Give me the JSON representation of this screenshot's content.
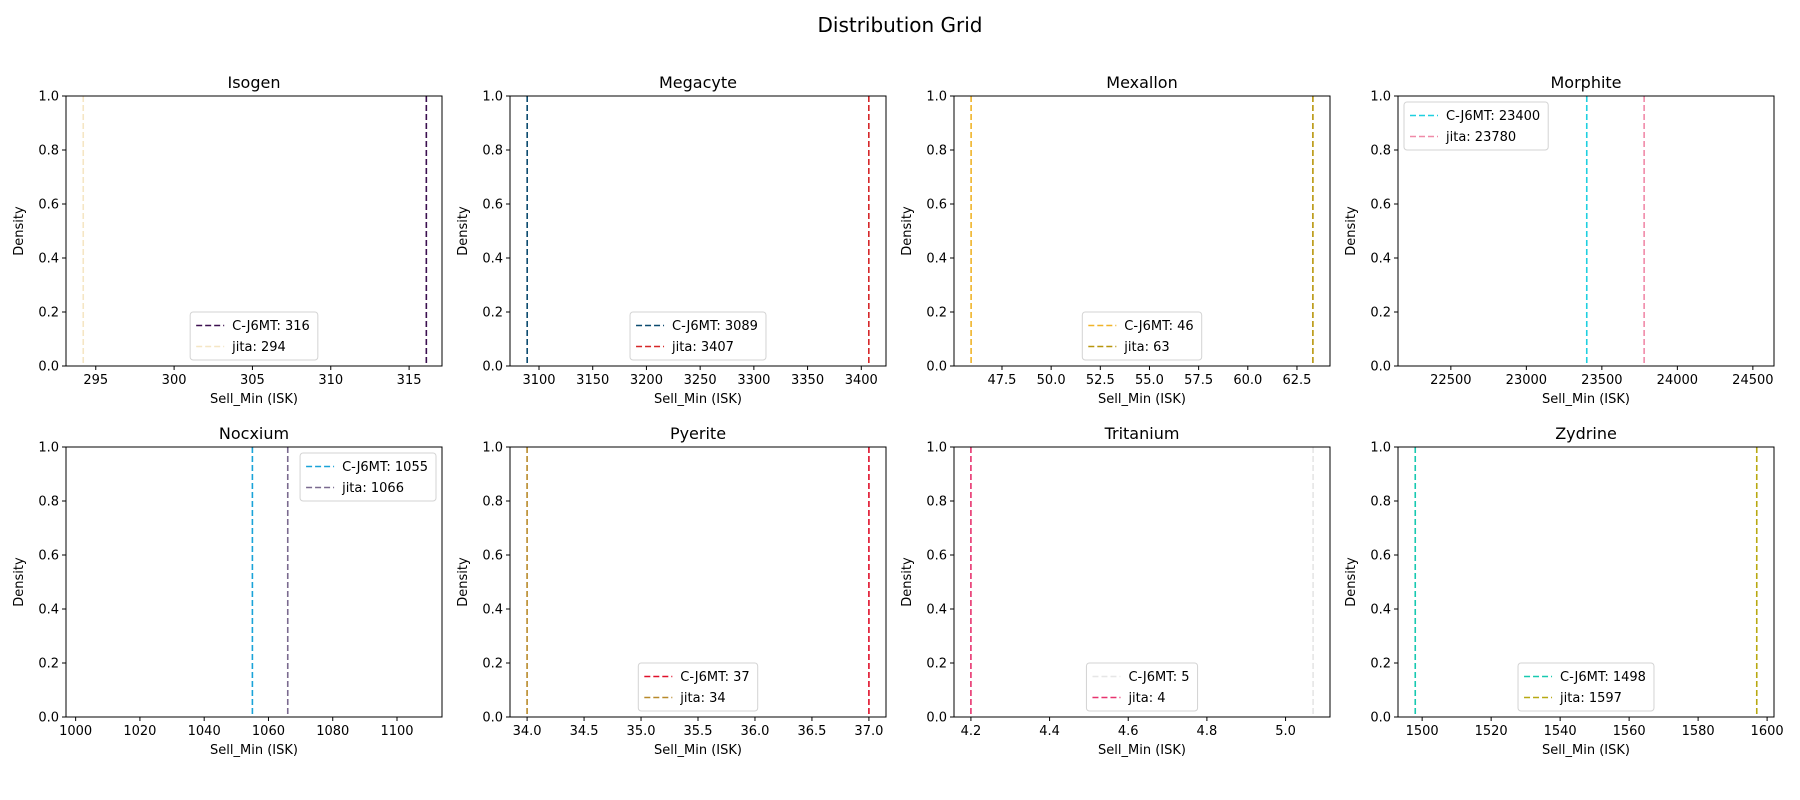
{
  "chart_data": {
    "title": "Distribution Grid",
    "panels": [
      {
        "type": "line",
        "title": "Isogen",
        "xlabel": "Sell_Min (ISK)",
        "ylabel": "Density",
        "xlim": [
          293.1,
          317.1
        ],
        "ylim": [
          0,
          1
        ],
        "xticks": [
          295,
          300,
          305,
          310,
          315
        ],
        "xtick_labels": [
          "295",
          "300",
          "305",
          "310",
          "315"
        ],
        "yticks": [
          0,
          0.2,
          0.4,
          0.6,
          0.8,
          1.0
        ],
        "ytick_labels": [
          "0.0",
          "0.2",
          "0.4",
          "0.6",
          "0.8",
          "1.0"
        ],
        "legend_position": "lower-center",
        "series": [
          {
            "name": "C-J6MT: 316",
            "x": 316.1,
            "color": "#3b0f4f"
          },
          {
            "name": "jita: 294",
            "x": 294.2,
            "color": "#f5e6c4"
          }
        ]
      },
      {
        "type": "line",
        "title": "Megacyte",
        "xlabel": "Sell_Min (ISK)",
        "ylabel": "Density",
        "xlim": [
          3073,
          3423
        ],
        "ylim": [
          0,
          1
        ],
        "xticks": [
          3100,
          3150,
          3200,
          3250,
          3300,
          3350,
          3400
        ],
        "xtick_labels": [
          "3100",
          "3150",
          "3200",
          "3250",
          "3300",
          "3350",
          "3400"
        ],
        "yticks": [
          0,
          0.2,
          0.4,
          0.6,
          0.8,
          1.0
        ],
        "ytick_labels": [
          "0.0",
          "0.2",
          "0.4",
          "0.6",
          "0.8",
          "1.0"
        ],
        "legend_position": "lower-center",
        "series": [
          {
            "name": "C-J6MT: 3089",
            "x": 3089,
            "color": "#0b4a6f"
          },
          {
            "name": "jita: 3407",
            "x": 3407,
            "color": "#d62728"
          }
        ]
      },
      {
        "type": "line",
        "title": "Mexallon",
        "xlabel": "Sell_Min (ISK)",
        "ylabel": "Density",
        "xlim": [
          45.06,
          64.18
        ],
        "ylim": [
          0,
          1
        ],
        "xticks": [
          47.5,
          50.0,
          52.5,
          55.0,
          57.5,
          60.0,
          62.5
        ],
        "xtick_labels": [
          "47.5",
          "50.0",
          "52.5",
          "55.0",
          "57.5",
          "60.0",
          "62.5"
        ],
        "yticks": [
          0,
          0.2,
          0.4,
          0.6,
          0.8,
          1.0
        ],
        "ytick_labels": [
          "0.0",
          "0.2",
          "0.4",
          "0.6",
          "0.8",
          "1.0"
        ],
        "legend_position": "lower-center",
        "series": [
          {
            "name": "C-J6MT: 46",
            "x": 45.93,
            "color": "#f0b429"
          },
          {
            "name": "jita: 63",
            "x": 63.31,
            "color": "#b8960c"
          }
        ]
      },
      {
        "type": "line",
        "title": "Morphite",
        "xlabel": "Sell_Min (ISK)",
        "ylabel": "Density",
        "xlim": [
          22150,
          24640
        ],
        "ylim": [
          0,
          1
        ],
        "xticks": [
          22500,
          23000,
          23500,
          24000,
          24500
        ],
        "xtick_labels": [
          "22500",
          "23000",
          "23500",
          "24000",
          "24500"
        ],
        "yticks": [
          0,
          0.2,
          0.4,
          0.6,
          0.8,
          1.0
        ],
        "ytick_labels": [
          "0.0",
          "0.2",
          "0.4",
          "0.6",
          "0.8",
          "1.0"
        ],
        "legend_position": "upper-left",
        "series": [
          {
            "name": "C-J6MT: 23400",
            "x": 23400,
            "color": "#1fd0e0"
          },
          {
            "name": "jita: 23780",
            "x": 23780,
            "color": "#f08aa8"
          }
        ]
      },
      {
        "type": "line",
        "title": "Nocxium",
        "xlabel": "Sell_Min (ISK)",
        "ylabel": "Density",
        "xlim": [
          997,
          1114
        ],
        "ylim": [
          0,
          1
        ],
        "xticks": [
          1000,
          1020,
          1040,
          1060,
          1080,
          1100
        ],
        "xtick_labels": [
          "1000",
          "1020",
          "1040",
          "1060",
          "1080",
          "1100"
        ],
        "yticks": [
          0,
          0.2,
          0.4,
          0.6,
          0.8,
          1.0
        ],
        "ytick_labels": [
          "0.0",
          "0.2",
          "0.4",
          "0.6",
          "0.8",
          "1.0"
        ],
        "legend_position": "upper-right",
        "series": [
          {
            "name": "C-J6MT: 1055",
            "x": 1055,
            "color": "#1aa3d8"
          },
          {
            "name": "jita: 1066",
            "x": 1066,
            "color": "#7a6a8f"
          }
        ]
      },
      {
        "type": "line",
        "title": "Pyerite",
        "xlabel": "Sell_Min (ISK)",
        "ylabel": "Density",
        "xlim": [
          33.85,
          37.15
        ],
        "ylim": [
          0,
          1
        ],
        "xticks": [
          34.0,
          34.5,
          35.0,
          35.5,
          36.0,
          36.5,
          37.0
        ],
        "xtick_labels": [
          "34.0",
          "34.5",
          "35.0",
          "35.5",
          "36.0",
          "36.5",
          "37.0"
        ],
        "yticks": [
          0,
          0.2,
          0.4,
          0.6,
          0.8,
          1.0
        ],
        "ytick_labels": [
          "0.0",
          "0.2",
          "0.4",
          "0.6",
          "0.8",
          "1.0"
        ],
        "legend_position": "lower-center",
        "series": [
          {
            "name": "C-J6MT: 37",
            "x": 37.0,
            "color": "#e0102a"
          },
          {
            "name": "jita: 34",
            "x": 34.0,
            "color": "#b88a2a"
          }
        ]
      },
      {
        "type": "line",
        "title": "Tritanium",
        "xlabel": "Sell_Min (ISK)",
        "ylabel": "Density",
        "xlim": [
          4.157,
          5.113
        ],
        "ylim": [
          0,
          1
        ],
        "xticks": [
          4.2,
          4.4,
          4.6,
          4.8,
          5.0
        ],
        "xtick_labels": [
          "4.2",
          "4.4",
          "4.6",
          "4.8",
          "5.0"
        ],
        "yticks": [
          0,
          0.2,
          0.4,
          0.6,
          0.8,
          1.0
        ],
        "ytick_labels": [
          "0.0",
          "0.2",
          "0.4",
          "0.6",
          "0.8",
          "1.0"
        ],
        "legend_position": "lower-center",
        "series": [
          {
            "name": "C-J6MT: 5",
            "x": 5.07,
            "color": "#e6e6e6"
          },
          {
            "name": "jita: 4",
            "x": 4.2,
            "color": "#e8336f"
          }
        ]
      },
      {
        "type": "line",
        "title": "Zydrine",
        "xlabel": "Sell_Min (ISK)",
        "ylabel": "Density",
        "xlim": [
          1493,
          1602
        ],
        "ylim": [
          0,
          1
        ],
        "xticks": [
          1500,
          1520,
          1540,
          1560,
          1580,
          1600
        ],
        "xtick_labels": [
          "1500",
          "1520",
          "1540",
          "1560",
          "1580",
          "1600"
        ],
        "yticks": [
          0,
          0.2,
          0.4,
          0.6,
          0.8,
          1.0
        ],
        "ytick_labels": [
          "0.0",
          "0.2",
          "0.4",
          "0.6",
          "0.8",
          "1.0"
        ],
        "legend_position": "lower-center",
        "series": [
          {
            "name": "C-J6MT: 1498",
            "x": 1498,
            "color": "#17c9b0"
          },
          {
            "name": "jita: 1597",
            "x": 1597,
            "color": "#b8a912"
          }
        ]
      }
    ]
  }
}
